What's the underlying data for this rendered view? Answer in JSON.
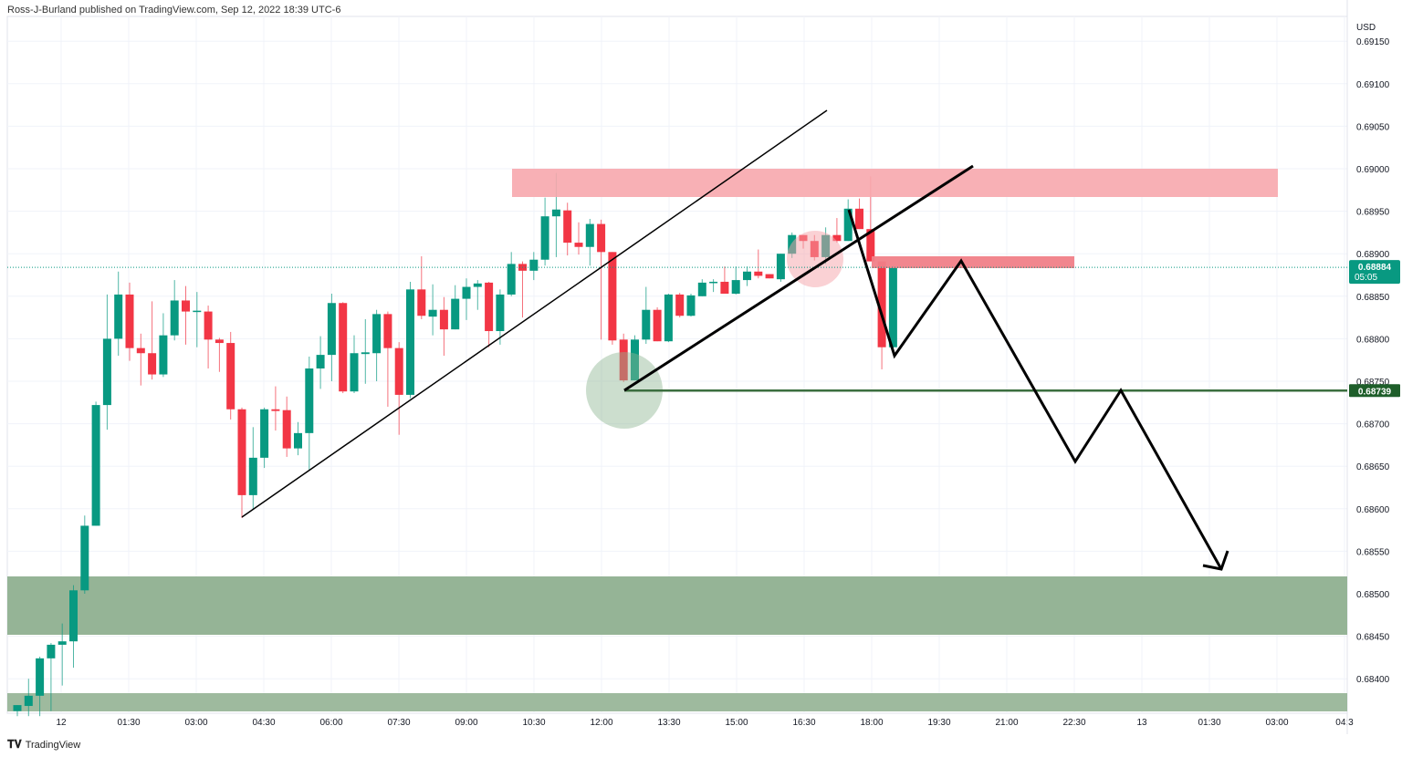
{
  "header": {
    "text": "Ross-J-Burland published on TradingView.com, Sep 12, 2022 18:39 UTC-6"
  },
  "footer": {
    "brand": "TradingView",
    "logo_glyph": "17"
  },
  "colors": {
    "up": "#089981",
    "down": "#f23645",
    "resistance_zone": "#f7a7ad",
    "support_zone": "#93b394",
    "support_line": "#3b6e3f",
    "support_label_bg": "#1e5e2a"
  },
  "chart_data": {
    "type": "candlestick",
    "title": "",
    "currency": "USD",
    "interval_minutes": 15,
    "ylim": [
      0.6837,
      0.6918
    ],
    "y_ticks": [
      "0.69150",
      "0.69100",
      "0.69050",
      "0.69000",
      "0.68950",
      "0.68900",
      "0.68850",
      "0.68800",
      "0.68750",
      "0.68700",
      "0.68650",
      "0.68600",
      "0.68550",
      "0.68500",
      "0.68450",
      "0.68400"
    ],
    "x_ticks": [
      "12",
      "01:30",
      "03:00",
      "04:30",
      "06:00",
      "07:30",
      "09:00",
      "10:30",
      "12:00",
      "13:30",
      "15:00",
      "16:30",
      "18:00",
      "19:30",
      "21:00",
      "22:30",
      "13",
      "01:30",
      "03:00",
      "04:3"
    ],
    "last_price": {
      "value": "0.68884",
      "countdown": "05:05"
    },
    "level_label": {
      "value": "0.68739"
    },
    "ohlc": [
      [
        0.68362,
        0.68369,
        0.68356,
        0.68369
      ],
      [
        0.68368,
        0.684,
        0.68356,
        0.6838
      ],
      [
        0.6838,
        0.68426,
        0.68356,
        0.68424
      ],
      [
        0.68424,
        0.68442,
        0.68362,
        0.6844
      ],
      [
        0.6844,
        0.68465,
        0.68392,
        0.68444
      ],
      [
        0.68444,
        0.6851,
        0.68413,
        0.68504
      ],
      [
        0.68504,
        0.68592,
        0.685,
        0.6858
      ],
      [
        0.6858,
        0.68726,
        0.6858,
        0.68722
      ],
      [
        0.68722,
        0.68852,
        0.68693,
        0.688
      ],
      [
        0.688,
        0.68879,
        0.6878,
        0.68852
      ],
      [
        0.68852,
        0.68866,
        0.68774,
        0.68789
      ],
      [
        0.68789,
        0.68806,
        0.68745,
        0.68783
      ],
      [
        0.68783,
        0.68844,
        0.68752,
        0.68758
      ],
      [
        0.68758,
        0.6883,
        0.68755,
        0.68804
      ],
      [
        0.68804,
        0.68869,
        0.68798,
        0.68845
      ],
      [
        0.68845,
        0.68862,
        0.68793,
        0.68832
      ],
      [
        0.68832,
        0.68855,
        0.6879,
        0.68833
      ],
      [
        0.68832,
        0.68839,
        0.68765,
        0.68799
      ],
      [
        0.68799,
        0.68801,
        0.68761,
        0.68795
      ],
      [
        0.68795,
        0.68808,
        0.68705,
        0.68717
      ],
      [
        0.68717,
        0.68719,
        0.68589,
        0.68616
      ],
      [
        0.68616,
        0.68696,
        0.68599,
        0.6866
      ],
      [
        0.6866,
        0.68719,
        0.68648,
        0.68717
      ],
      [
        0.68717,
        0.68744,
        0.68692,
        0.68715
      ],
      [
        0.68716,
        0.68732,
        0.68661,
        0.68671
      ],
      [
        0.68671,
        0.68702,
        0.68663,
        0.68689
      ],
      [
        0.68689,
        0.68779,
        0.68646,
        0.68765
      ],
      [
        0.68765,
        0.68803,
        0.68741,
        0.68781
      ],
      [
        0.68781,
        0.68853,
        0.6875,
        0.68842
      ],
      [
        0.68842,
        0.68843,
        0.68736,
        0.68738
      ],
      [
        0.68738,
        0.68804,
        0.68736,
        0.68783
      ],
      [
        0.68782,
        0.68823,
        0.68747,
        0.68784
      ],
      [
        0.68783,
        0.68834,
        0.6875,
        0.68829
      ],
      [
        0.68829,
        0.68832,
        0.6872,
        0.68789
      ],
      [
        0.68789,
        0.68796,
        0.68687,
        0.68734
      ],
      [
        0.68734,
        0.68867,
        0.6873,
        0.68858
      ],
      [
        0.68858,
        0.68897,
        0.68823,
        0.68827
      ],
      [
        0.68826,
        0.68864,
        0.68804,
        0.68834
      ],
      [
        0.68834,
        0.68849,
        0.6878,
        0.68811
      ],
      [
        0.68811,
        0.68863,
        0.68811,
        0.68847
      ],
      [
        0.68847,
        0.68871,
        0.68822,
        0.68861
      ],
      [
        0.68861,
        0.68869,
        0.68834,
        0.68865
      ],
      [
        0.68866,
        0.68867,
        0.6879,
        0.68809
      ],
      [
        0.68809,
        0.68858,
        0.68793,
        0.68852
      ],
      [
        0.68852,
        0.68902,
        0.6885,
        0.68888
      ],
      [
        0.68888,
        0.68891,
        0.68825,
        0.6888
      ],
      [
        0.6888,
        0.68902,
        0.68869,
        0.68893
      ],
      [
        0.68893,
        0.68966,
        0.68886,
        0.68944
      ],
      [
        0.68944,
        0.68995,
        0.68896,
        0.68952
      ],
      [
        0.68951,
        0.6896,
        0.68898,
        0.68913
      ],
      [
        0.68913,
        0.68937,
        0.68899,
        0.68908
      ],
      [
        0.68908,
        0.68941,
        0.68886,
        0.68935
      ],
      [
        0.68935,
        0.6894,
        0.68799,
        0.68902
      ],
      [
        0.68902,
        0.68902,
        0.68793,
        0.68798
      ],
      [
        0.68799,
        0.68806,
        0.68749,
        0.68751
      ],
      [
        0.68751,
        0.68804,
        0.68751,
        0.68799
      ],
      [
        0.68799,
        0.68861,
        0.68794,
        0.68834
      ],
      [
        0.68834,
        0.68837,
        0.68797,
        0.68797
      ],
      [
        0.68797,
        0.68853,
        0.68796,
        0.68852
      ],
      [
        0.68852,
        0.68854,
        0.68825,
        0.68827
      ],
      [
        0.68827,
        0.68853,
        0.68826,
        0.68851
      ],
      [
        0.6885,
        0.6887,
        0.6885,
        0.68866
      ],
      [
        0.68866,
        0.6887,
        0.68855,
        0.68867
      ],
      [
        0.68867,
        0.68885,
        0.68853,
        0.68853
      ],
      [
        0.68853,
        0.68885,
        0.68852,
        0.68869
      ],
      [
        0.68869,
        0.68885,
        0.68862,
        0.68879
      ],
      [
        0.68879,
        0.68905,
        0.68871,
        0.68874
      ],
      [
        0.68876,
        0.68876,
        0.68871,
        0.68871
      ],
      [
        0.6887,
        0.689,
        0.68867,
        0.689
      ],
      [
        0.689,
        0.68925,
        0.68895,
        0.68922
      ],
      [
        0.68922,
        0.68922,
        0.68906,
        0.68915
      ],
      [
        0.68915,
        0.68922,
        0.68892,
        0.68896
      ],
      [
        0.68896,
        0.68931,
        0.68888,
        0.68922
      ],
      [
        0.68922,
        0.68942,
        0.68913,
        0.68915
      ],
      [
        0.68915,
        0.68964,
        0.68915,
        0.68953
      ],
      [
        0.68953,
        0.68965,
        0.68929,
        0.68929
      ],
      [
        0.68929,
        0.68991,
        0.68891,
        0.68891
      ],
      [
        0.68891,
        0.68891,
        0.68764,
        0.6879
      ],
      [
        0.6879,
        0.68886,
        0.68785,
        0.68884
      ]
    ]
  }
}
